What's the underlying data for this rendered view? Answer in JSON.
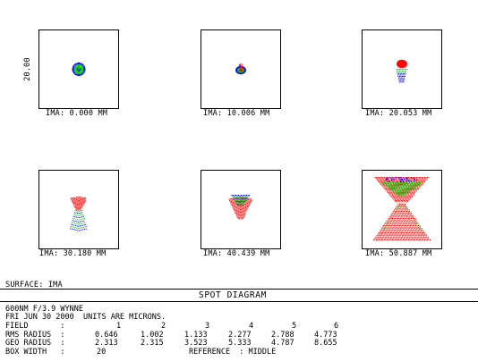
{
  "diagram": {
    "scale_label": "20.00",
    "panels": [
      {
        "label": "IMA: 0.000 MM",
        "field": 1
      },
      {
        "label": "IMA: 10.006 MM",
        "field": 2
      },
      {
        "label": "IMA: 20.053 MM",
        "field": 3
      },
      {
        "label": "IMA: 30.180 MM",
        "field": 4
      },
      {
        "label": "IMA: 40.439 MM",
        "field": 5
      },
      {
        "label": "IMA: 50.887 MM",
        "field": 6
      }
    ],
    "wavelength_colors": [
      "#0000ff",
      "#00cc00",
      "#ff0000"
    ]
  },
  "footer": {
    "surface": "SURFACE: IMA",
    "title": "SPOT DIAGRAM",
    "lens": "600NM F/3.9 WYNNE",
    "date_units": "FRI JUN 30 2000  UNITS ARE MICRONS.",
    "field_label": "FIELD       :",
    "field_values": [
      "1",
      "2",
      "3",
      "4",
      "5",
      "6"
    ],
    "rms_label": "RMS RADIUS  :",
    "rms_values": [
      "0.646",
      "1.002",
      "1.133",
      "2.277",
      "2.788",
      "4.773"
    ],
    "geo_label": "GEO RADIUS  :",
    "geo_values": [
      "2.313",
      "2.315",
      "3.523",
      "5.333",
      "4.787",
      "8.655"
    ],
    "box_label": "BOX WIDTH   :",
    "box_value": "20",
    "reference": "REFERENCE  : MIDDLE"
  }
}
